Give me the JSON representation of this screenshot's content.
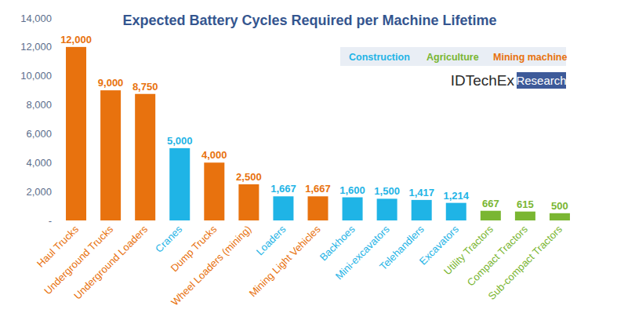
{
  "chart_data": {
    "type": "bar",
    "title": "Expected Battery Cycles Required per Machine Lifetime",
    "annotations": [
      "IDTechEx",
      "Research"
    ],
    "categories": [
      "Haul Trucks",
      "Underground Trucks",
      "Underground Loaders",
      "Cranes",
      "Dump Trucks",
      "Wheel Loaders (mining)",
      "Loaders",
      "Mining Light Vehicles",
      "Backhoes",
      "Mini-excavators",
      "Telehandlers",
      "Excavators",
      "Utility Tractors",
      "Compact Tractors",
      "Sub-compact Tractors"
    ],
    "series": [
      {
        "name": "Construction",
        "color": "#1fb4e6",
        "values": [
          null,
          null,
          null,
          5000,
          null,
          null,
          1667,
          null,
          1600,
          1500,
          1417,
          1214,
          null,
          null,
          null
        ],
        "value_labels": [
          null,
          null,
          null,
          "5,000",
          null,
          null,
          "1,667",
          null,
          "1,600",
          "1,500",
          "1,417",
          "1,214",
          null,
          null,
          null
        ]
      },
      {
        "name": "Agriculture",
        "color": "#7ab632",
        "values": [
          null,
          null,
          null,
          null,
          null,
          null,
          null,
          null,
          null,
          null,
          null,
          null,
          667,
          615,
          500
        ],
        "value_labels": [
          null,
          null,
          null,
          null,
          null,
          null,
          null,
          null,
          null,
          null,
          null,
          null,
          "667",
          "615",
          "500"
        ]
      },
      {
        "name": "Mining machine",
        "color": "#e8720e",
        "values": [
          12000,
          9000,
          8750,
          null,
          4000,
          2500,
          null,
          1667,
          null,
          null,
          null,
          null,
          null,
          null,
          null
        ],
        "value_labels": [
          "12,000",
          "9,000",
          "8,750",
          null,
          "4,000",
          "2,500",
          null,
          "1,667",
          null,
          null,
          null,
          null,
          null,
          null,
          null
        ]
      }
    ],
    "ylim": [
      0,
      14000
    ],
    "yticks": [
      {
        "value": 0,
        "label": "-"
      },
      {
        "value": 2000,
        "label": "2,000"
      },
      {
        "value": 4000,
        "label": "4,000"
      },
      {
        "value": 6000,
        "label": "6,000"
      },
      {
        "value": 8000,
        "label": "8,000"
      },
      {
        "value": 10000,
        "label": "10,000"
      },
      {
        "value": 12000,
        "label": "12,000"
      },
      {
        "value": 14000,
        "label": "14,000"
      }
    ],
    "grid": false,
    "stacked": true,
    "data_labels": true,
    "legend": "top-right"
  }
}
